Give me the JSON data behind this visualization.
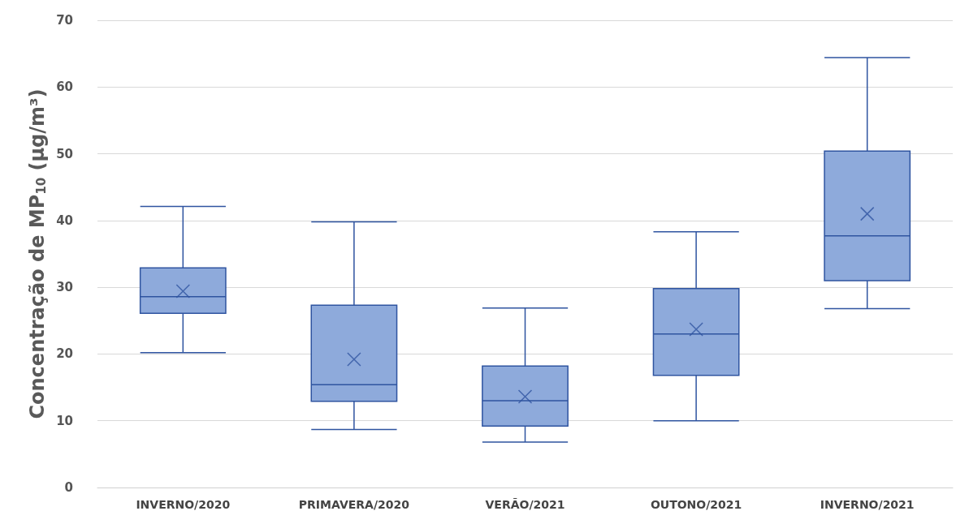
{
  "chart_data": {
    "type": "box",
    "ylabel": "Concentração de MP$_{10}$ (µg/m³)",
    "categories": [
      "INVERNO/2020",
      "PRIMAVERA/2020",
      "VERÃO/2021",
      "OUTONO/2021",
      "INVERNO/2021"
    ],
    "boxes": [
      {
        "low": 20.2,
        "q1": 26.1,
        "median": 28.6,
        "q3": 32.9,
        "high": 42.1,
        "mean": 29.4
      },
      {
        "low": 8.7,
        "q1": 12.9,
        "median": 15.4,
        "q3": 27.3,
        "high": 39.8,
        "mean": 19.2
      },
      {
        "low": 6.8,
        "q1": 9.2,
        "median": 13.0,
        "q3": 18.2,
        "high": 26.9,
        "mean": 13.6
      },
      {
        "low": 10.0,
        "q1": 16.8,
        "median": 23.0,
        "q3": 29.8,
        "high": 38.3,
        "mean": 23.7
      },
      {
        "low": 26.8,
        "q1": 31.0,
        "median": 37.7,
        "q3": 50.4,
        "high": 64.4,
        "mean": 41.0
      }
    ],
    "color": "#8eaadb",
    "marker": "cross",
    "ylim": [
      0,
      70
    ],
    "yticks": [
      0,
      10,
      20,
      30,
      40,
      50,
      60,
      70
    ],
    "grid": "y"
  }
}
